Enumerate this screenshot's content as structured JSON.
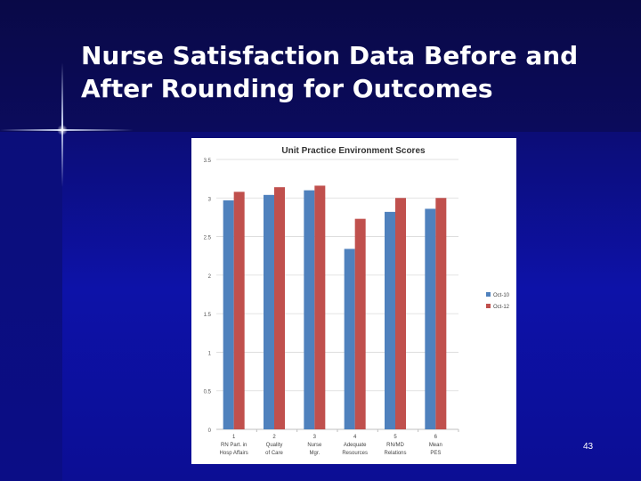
{
  "slide": {
    "title": "Nurse Satisfaction Data Before and After Rounding for Outcomes",
    "page_number": "43"
  },
  "colors": {
    "series1": "#4f81bd",
    "series2": "#c0504d"
  },
  "chart_data": {
    "type": "bar",
    "title": "Unit Practice Environment Scores",
    "xlabel": "",
    "ylabel": "",
    "ylim": [
      0,
      3.5
    ],
    "yticks": [
      "0",
      "0.5",
      "1",
      "1.5",
      "2",
      "2.5",
      "3",
      "3.5"
    ],
    "categories": [
      [
        "1",
        "RN Part. in",
        "Hosp Affairs"
      ],
      [
        "2",
        "Quality",
        "of Care"
      ],
      [
        "3",
        "Nurse",
        "Mgr."
      ],
      [
        "4",
        "Adequate",
        "Resources"
      ],
      [
        "5",
        "RN/MD",
        "Relations"
      ],
      [
        "6",
        "Mean",
        "PES"
      ]
    ],
    "series": [
      {
        "name": "Oct-10",
        "values": [
          2.97,
          3.04,
          3.1,
          2.34,
          2.82,
          2.86
        ]
      },
      {
        "name": "Oct-12",
        "values": [
          3.08,
          3.14,
          3.16,
          2.73,
          3.0,
          3.0
        ]
      }
    ],
    "legend": "right"
  }
}
